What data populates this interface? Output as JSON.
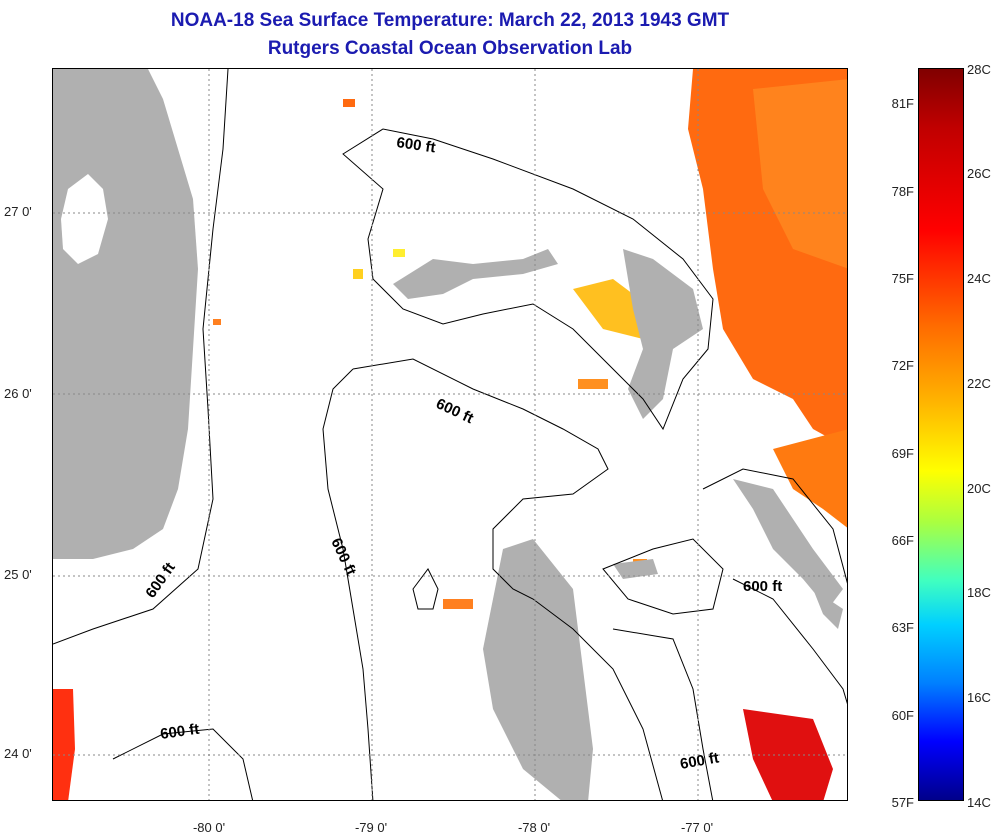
{
  "title": "NOAA-18 Sea Surface Temperature:  March 22, 2013 1943 GMT",
  "subtitle": "Rutgers Coastal Ocean Observation Lab",
  "latitude_labels": [
    "27 0'",
    "26 0'",
    "25 0'",
    "24 0'"
  ],
  "longitude_labels": [
    "-80 0'",
    "-79 0'",
    "-78 0'",
    "-77 0'"
  ],
  "contour_label": "600 ft",
  "colorbar": {
    "fahrenheit_labels": [
      "81F",
      "78F",
      "75F",
      "72F",
      "69F",
      "66F",
      "63F",
      "60F",
      "57F"
    ],
    "celsius_labels": [
      "28C",
      "26C",
      "24C",
      "22C",
      "20C",
      "18C",
      "16C",
      "14C"
    ],
    "colors": [
      "#800000",
      "#ff0000",
      "#ff8c00",
      "#ffff00",
      "#40ffc0",
      "#0080ff",
      "#00008a"
    ]
  },
  "land_color": "#b0b0b0",
  "colors": {
    "title": "#1b1bb0",
    "grid": "#888888"
  }
}
